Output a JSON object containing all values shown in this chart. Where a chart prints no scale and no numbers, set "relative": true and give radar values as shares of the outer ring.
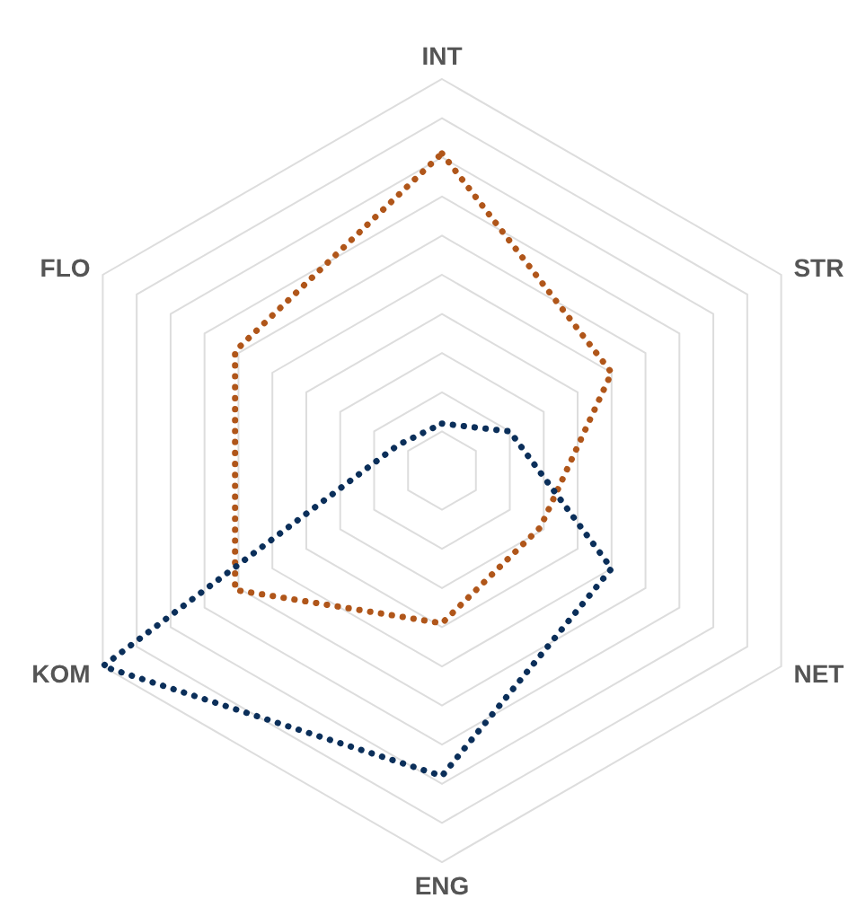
{
  "chart_data": {
    "type": "radar",
    "relative": true,
    "categories": [
      "INT",
      "STR",
      "NET",
      "ENG",
      "KOM",
      "FLO"
    ],
    "grid": true,
    "line_style": "dotted",
    "marker": "none",
    "series": [
      {
        "color": "#b0561a",
        "values": [
          0.81,
          0.5,
          0.29,
          0.39,
          0.61,
          0.61
        ]
      },
      {
        "color": "#0b2f5a",
        "values": [
          0.12,
          0.2,
          0.5,
          0.78,
          1.0,
          0.13
        ]
      }
    ]
  }
}
